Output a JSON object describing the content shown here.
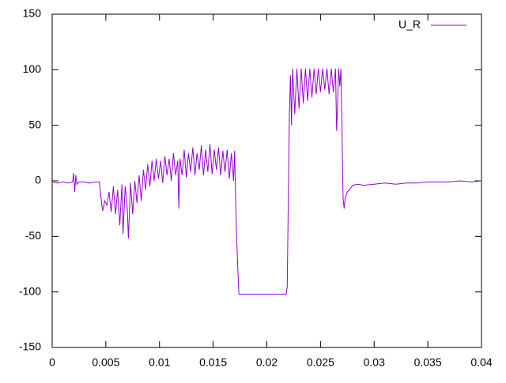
{
  "chart_data": {
    "type": "line",
    "x": [
      0,
      0.0005,
      0.001,
      0.0015,
      0.0019,
      0.002,
      0.0021,
      0.0022,
      0.0023,
      0.0025,
      0.003,
      0.0035,
      0.004,
      0.0044,
      0.0046,
      0.0047,
      0.0049,
      0.0051,
      0.0053,
      0.0055,
      0.0057,
      0.0059,
      0.0061,
      0.0063,
      0.0065,
      0.0066,
      0.0068,
      0.007,
      0.0071,
      0.0073,
      0.0075,
      0.0077,
      0.0079,
      0.0081,
      0.0083,
      0.0085,
      0.0087,
      0.0089,
      0.0091,
      0.0093,
      0.0095,
      0.0097,
      0.0099,
      0.0101,
      0.0103,
      0.0105,
      0.0107,
      0.0109,
      0.0111,
      0.0113,
      0.0115,
      0.0117,
      0.0118,
      0.0119,
      0.0121,
      0.0123,
      0.0125,
      0.0127,
      0.0129,
      0.0131,
      0.0133,
      0.0135,
      0.0137,
      0.0139,
      0.0141,
      0.0143,
      0.0145,
      0.0147,
      0.0149,
      0.0151,
      0.0153,
      0.0155,
      0.0157,
      0.0159,
      0.0161,
      0.0163,
      0.0165,
      0.0167,
      0.0169,
      0.017,
      0.0171,
      0.0172,
      0.0173,
      0.0174,
      0.018,
      0.019,
      0.02,
      0.021,
      0.0218,
      0.0219,
      0.0221,
      0.0222,
      0.0223,
      0.0224,
      0.0226,
      0.0228,
      0.023,
      0.0232,
      0.0234,
      0.0236,
      0.0238,
      0.024,
      0.0242,
      0.0244,
      0.0246,
      0.0248,
      0.025,
      0.0252,
      0.0254,
      0.0256,
      0.0258,
      0.026,
      0.0262,
      0.0264,
      0.0265,
      0.0267,
      0.0268,
      0.0269,
      0.027,
      0.0271,
      0.0272,
      0.0273,
      0.0275,
      0.0277,
      0.028,
      0.0285,
      0.029,
      0.03,
      0.031,
      0.032,
      0.033,
      0.034,
      0.035,
      0.036,
      0.037,
      0.038,
      0.039,
      0.04
    ],
    "series": [
      {
        "name": "U_R",
        "color": "#9400d3",
        "values": [
          -1,
          -2,
          -1,
          -2,
          -1,
          7,
          -10,
          5,
          -3,
          -1,
          -1,
          -2,
          -1,
          -1,
          -20,
          -27,
          -18,
          -22,
          -10,
          -28,
          -5,
          -30,
          -8,
          -40,
          -3,
          -48,
          -5,
          -25,
          -52,
          -2,
          -30,
          0,
          -20,
          5,
          -18,
          10,
          -8,
          15,
          -5,
          18,
          0,
          20,
          2,
          18,
          -2,
          22,
          5,
          20,
          0,
          25,
          5,
          18,
          -25,
          20,
          5,
          28,
          3,
          25,
          8,
          30,
          5,
          25,
          10,
          32,
          5,
          28,
          8,
          33,
          6,
          28,
          10,
          30,
          5,
          27,
          8,
          28,
          2,
          25,
          0,
          27,
          -20,
          -55,
          -80,
          -102,
          -102,
          -102,
          -102,
          -102,
          -102,
          -95,
          60,
          95,
          50,
          101,
          60,
          101,
          65,
          101,
          70,
          101,
          72,
          101,
          75,
          101,
          78,
          101,
          80,
          101,
          82,
          101,
          78,
          101,
          80,
          101,
          45,
          101,
          85,
          101,
          50,
          -15,
          -25,
          -15,
          -10,
          -8,
          -4,
          -3,
          -4,
          -3,
          -2,
          -3,
          -2,
          -2,
          -1,
          -1,
          -1,
          0,
          -1,
          0
        ]
      }
    ],
    "xlim": [
      0,
      0.04
    ],
    "xticks": [
      0,
      0.005,
      0.01,
      0.015,
      0.02,
      0.025,
      0.03,
      0.035,
      0.04
    ],
    "ylim": [
      -150,
      150
    ],
    "yticks": [
      -150,
      -100,
      -50,
      0,
      50,
      100,
      150
    ],
    "grid": false,
    "legend": "top-right"
  }
}
